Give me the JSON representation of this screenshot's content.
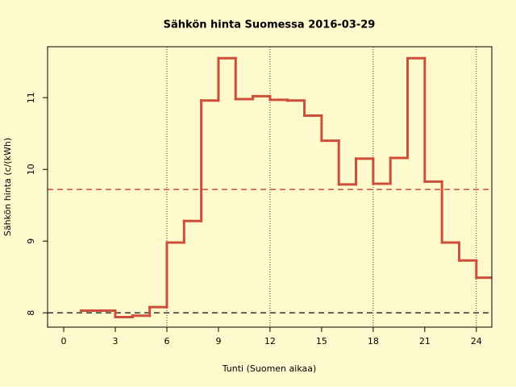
{
  "chart_data": {
    "type": "step",
    "title": "Sähkön hinta Suomessa 2016-03-29",
    "xlabel": "Tunti (Suomen aikaa)",
    "ylabel": "Sähkön hinta (c/(kWh)",
    "x": [
      1,
      2,
      3,
      4,
      5,
      6,
      7,
      8,
      9,
      10,
      11,
      12,
      13,
      14,
      15,
      16,
      17,
      18,
      19,
      20,
      21,
      22,
      23,
      24
    ],
    "series": [
      {
        "color": "#cd4f39",
        "values": [
          8.03,
          8.03,
          7.94,
          7.96,
          8.08,
          8.98,
          9.28,
          10.96,
          11.55,
          10.98,
          11.02,
          10.97,
          10.96,
          10.75,
          10.4,
          9.79,
          10.15,
          9.8,
          10.16,
          11.55,
          9.83,
          8.98,
          8.73,
          8.49
        ]
      }
    ],
    "xlim": [
      -0.94,
      24.9
    ],
    "ylim": [
      7.8,
      11.71
    ],
    "xticks": [
      0,
      3,
      6,
      9,
      12,
      15,
      18,
      21,
      24
    ],
    "yticks": [
      8,
      9,
      10,
      11
    ],
    "hlines": [
      {
        "value": 9.72,
        "color": "#cd4f39"
      },
      {
        "value": 8,
        "color": "#333333"
      }
    ],
    "vlines": [
      6,
      12,
      18,
      24
    ],
    "background": "#fffacd"
  }
}
